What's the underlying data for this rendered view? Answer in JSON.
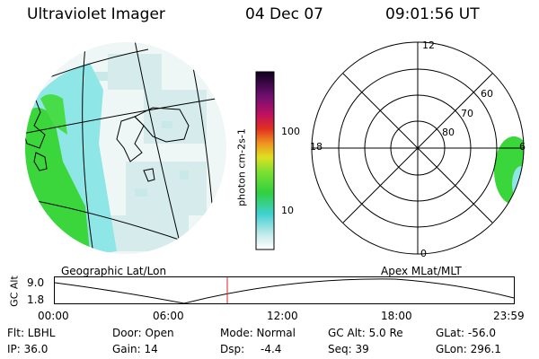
{
  "header": {
    "app_title": "Ultraviolet Imager",
    "date": "04 Dec 07",
    "time": "09:01:56 UT"
  },
  "colorbar": {
    "unit_label": "photon cm-2s-1",
    "ticks": [
      "100",
      "10"
    ]
  },
  "geo_map": {
    "label": "Geographic Lat/Lon"
  },
  "polar_plot": {
    "label": "Apex MLat/MLT",
    "mlt_labels": {
      "top": "12",
      "left": "18",
      "right": "6",
      "bottom": "0"
    },
    "lat_labels": [
      "60",
      "70",
      "80"
    ]
  },
  "altitude_plot": {
    "ylabel": "GC Alt",
    "yticks": [
      "9.0",
      "1.8"
    ],
    "xticks": [
      "00:00",
      "06:00",
      "12:00",
      "18:00",
      "23:59"
    ],
    "current_time_fraction": 0.376
  },
  "info": {
    "filter": "Flt: LBHL",
    "ip": "IP: 36.0",
    "door": "Door: Open",
    "gain": "Gain: 14",
    "mode": "Mode: Normal",
    "dsp_label": "Dsp:",
    "dsp_value": "-4.4",
    "gc_alt": "GC Alt: 5.0 Re",
    "seq": "Seq: 39",
    "glat": "GLat: -56.0",
    "glon": "GLon: 296.1"
  },
  "colors": {
    "background": "#ffffff",
    "foreground": "#000000",
    "aurora_green": "#3bd63b",
    "aurora_cyan": "#8fe6e6",
    "faint_cyan": "#d6ecec",
    "marker_red": "#e02020"
  }
}
